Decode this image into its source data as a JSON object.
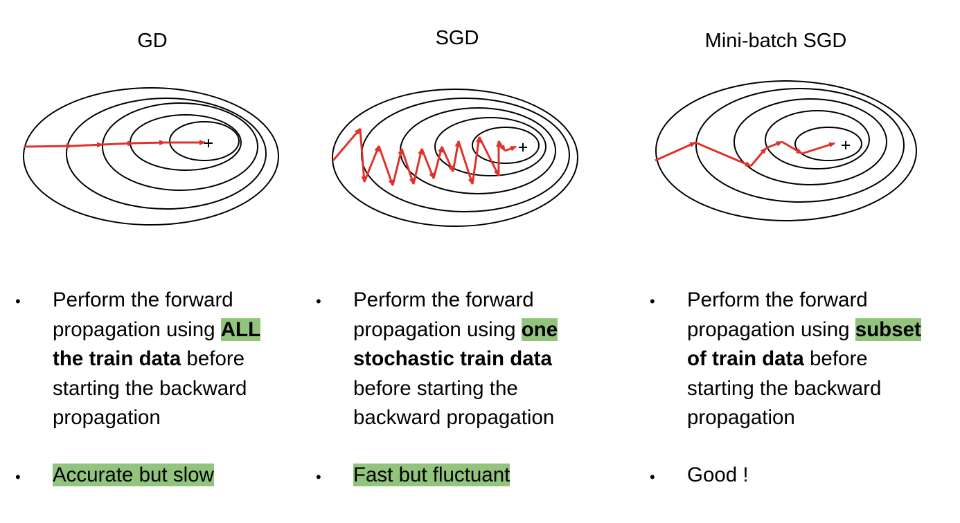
{
  "colors": {
    "path": "#e0312c",
    "contour": "#000000",
    "highlight": "#92c47d"
  },
  "icons": {
    "minimum": "plus-icon",
    "bullet": "bullet-dot-icon"
  },
  "columns": [
    {
      "id": "gd",
      "title": "GD",
      "desc": {
        "line1": "Perform the forward",
        "line2_pre": "propagation using ",
        "line2_hl": "ALL",
        "line3_bold": "the train data",
        "line3_rest": " before",
        "line4": "starting the backward",
        "line5": "propagation"
      },
      "verdict": "Accurate but slow",
      "verdict_highlighted": true
    },
    {
      "id": "sgd",
      "title": "SGD",
      "desc": {
        "line1": "Perform the forward",
        "line2_pre": "propagation using ",
        "line2_hl": "one",
        "line3_bold": "stochastic train data",
        "line3_rest": "",
        "line4": "before starting the",
        "line5": "backward propagation"
      },
      "verdict": "Fast but fluctuant",
      "verdict_highlighted": true
    },
    {
      "id": "minibatch",
      "title": "Mini-batch SGD",
      "desc": {
        "line1": "Perform the forward",
        "line2_pre": "propagation using ",
        "line2_hl": "subset",
        "line3_bold": "of train data",
        "line3_rest": " before",
        "line4": "starting the backward",
        "line5": "propagation"
      },
      "verdict": "Good !",
      "verdict_highlighted": false
    }
  ]
}
